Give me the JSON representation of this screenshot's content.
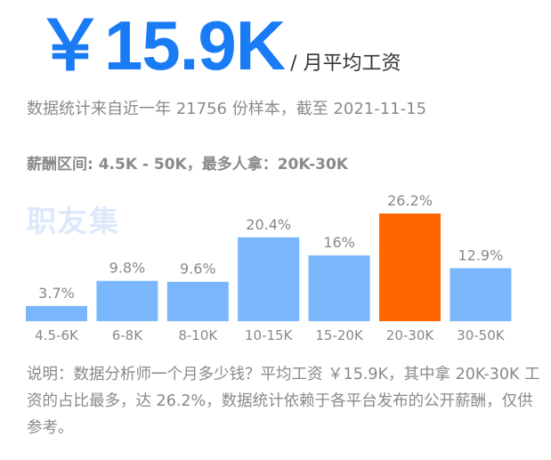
{
  "header": {
    "salary": "￥15.9K",
    "salary_unit": "/ 月平均工资"
  },
  "stats_line": "数据统计来自近一年 21756 份样本，截至 2021-11-15",
  "range_line": "薪酬区间: 4.5K - 50K，最多人拿：20K-30K",
  "watermark": "职友集",
  "chart_data": {
    "type": "bar",
    "categories": [
      "4.5-6K",
      "6-8K",
      "8-10K",
      "10-15K",
      "15-20K",
      "20-30K",
      "30-50K"
    ],
    "values": [
      3.7,
      9.8,
      9.6,
      20.4,
      16,
      26.2,
      12.9
    ],
    "data_labels": [
      "3.7%",
      "9.8%",
      "9.6%",
      "20.4%",
      "16%",
      "26.2%",
      "12.9%"
    ],
    "highlight_index": 5,
    "colors": {
      "bar": "#7ab6fb",
      "highlight": "#ff6600",
      "label": "#888888"
    },
    "ylim": [
      0,
      26.2
    ],
    "grid": false,
    "legend": "none"
  },
  "footnote": "说明：数据分析师一个月多少钱？平均工资 ￥15.9K，其中拿 20K-30K 工资的占比最多，达 26.2%，数据统计依赖于各平台发布的公开薪酬，仅供参考。"
}
